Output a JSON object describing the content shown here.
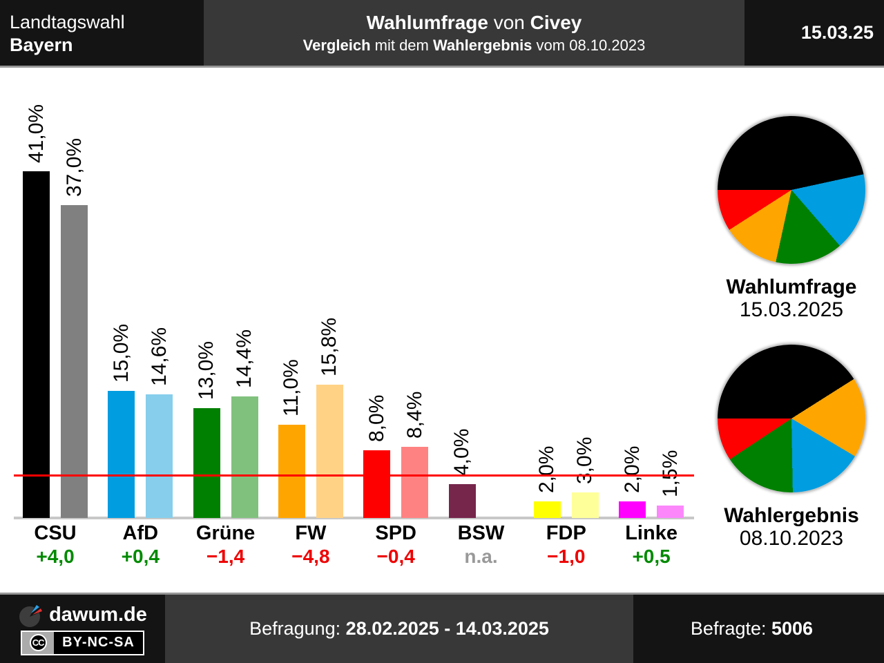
{
  "header": {
    "election": {
      "line1": "Landtagswahl",
      "line2": "Bayern"
    },
    "title": [
      {
        "t": "Wahlumfrage",
        "b": 1
      },
      {
        "t": " von ",
        "b": 0
      },
      {
        "t": "Civey",
        "b": 1
      }
    ],
    "subtitle": [
      {
        "t": "Vergleich",
        "b": 1
      },
      {
        "t": " mit dem ",
        "b": 0
      },
      {
        "t": "Wahlergebnis",
        "b": 1
      },
      {
        "t": " vom 08.10.2023",
        "b": 0
      }
    ],
    "date": "15.03.25"
  },
  "chart_data": {
    "type": "bar",
    "title": "Wahlumfrage von Civey — Landtagswahl Bayern",
    "unit": "percent",
    "grid": false,
    "threshold": {
      "value": 5,
      "color": "#ff0000"
    },
    "diff_colors": {
      "up": "#008a00",
      "down": "#ee0000",
      "na": "#999999"
    },
    "series": [
      {
        "name": "Wahlumfrage",
        "date": "15.03.2025"
      },
      {
        "name": "Wahlergebnis",
        "date": "08.10.2023"
      }
    ],
    "parties": [
      {
        "name": "CSU",
        "diff": "+4,0",
        "diff_state": "up",
        "poll": {
          "value": 41.0,
          "label": "41,0%",
          "color": "#000000"
        },
        "result": {
          "value": 37.0,
          "label": "37,0%",
          "color": "#808080"
        }
      },
      {
        "name": "AfD",
        "diff": "+0,4",
        "diff_state": "up",
        "poll": {
          "value": 15.0,
          "label": "15,0%",
          "color": "#009de0"
        },
        "result": {
          "value": 14.6,
          "label": "14,6%",
          "color": "#86ceec"
        }
      },
      {
        "name": "Grüne",
        "diff": "−1,4",
        "diff_state": "down",
        "poll": {
          "value": 13.0,
          "label": "13,0%",
          "color": "#008000"
        },
        "result": {
          "value": 14.4,
          "label": "14,4%",
          "color": "#80c17e"
        }
      },
      {
        "name": "FW",
        "diff": "−4,8",
        "diff_state": "down",
        "poll": {
          "value": 11.0,
          "label": "11,0%",
          "color": "#ffa500"
        },
        "result": {
          "value": 15.8,
          "label": "15,8%",
          "color": "#ffd285"
        }
      },
      {
        "name": "SPD",
        "diff": "−0,4",
        "diff_state": "down",
        "poll": {
          "value": 8.0,
          "label": "8,0%",
          "color": "#ff0000"
        },
        "result": {
          "value": 8.4,
          "label": "8,4%",
          "color": "#ff8282"
        }
      },
      {
        "name": "BSW",
        "diff": "n.a.",
        "diff_state": "na",
        "poll": {
          "value": 4.0,
          "label": "4,0%",
          "color": "#76254b"
        },
        "result": null
      },
      {
        "name": "FDP",
        "diff": "−1,0",
        "diff_state": "down",
        "poll": {
          "value": 2.0,
          "label": "2,0%",
          "color": "#ffff00"
        },
        "result": {
          "value": 3.0,
          "label": "3,0%",
          "color": "#ffff99"
        }
      },
      {
        "name": "Linke",
        "diff": "+0,5",
        "diff_state": "up",
        "poll": {
          "value": 2.0,
          "label": "2,0%",
          "color": "#ff00ff"
        },
        "result": {
          "value": 1.5,
          "label": "1,5%",
          "color": "#fb87fb"
        }
      }
    ],
    "pies": [
      {
        "title": "Wahlumfrage",
        "date": "15.03.2025",
        "slices": [
          {
            "party": "CSU",
            "value": 41.0,
            "color": "#000000"
          },
          {
            "party": "AfD",
            "value": 15.0,
            "color": "#009de0"
          },
          {
            "party": "Grüne",
            "value": 13.0,
            "color": "#008000"
          },
          {
            "party": "FW",
            "value": 11.0,
            "color": "#ffa500"
          },
          {
            "party": "SPD",
            "value": 8.0,
            "color": "#ff0000"
          }
        ]
      },
      {
        "title": "Wahlergebnis",
        "date": "08.10.2023",
        "slices": [
          {
            "party": "CSU",
            "value": 37.0,
            "color": "#000000"
          },
          {
            "party": "FW",
            "value": 15.8,
            "color": "#ffa500"
          },
          {
            "party": "AfD",
            "value": 14.6,
            "color": "#009de0"
          },
          {
            "party": "Grüne",
            "value": 14.4,
            "color": "#008000"
          },
          {
            "party": "SPD",
            "value": 8.4,
            "color": "#ff0000"
          }
        ]
      }
    ]
  },
  "footer": {
    "brand": "dawum.de",
    "cc": "CC",
    "license": "BY-NC-SA",
    "survey": [
      {
        "t": "Befragung: ",
        "b": 0
      },
      {
        "t": "28.02.2025 - 14.03.2025",
        "b": 1
      }
    ],
    "respondents": [
      {
        "t": "Befragte: ",
        "b": 0
      },
      {
        "t": "5006",
        "b": 1
      }
    ]
  }
}
